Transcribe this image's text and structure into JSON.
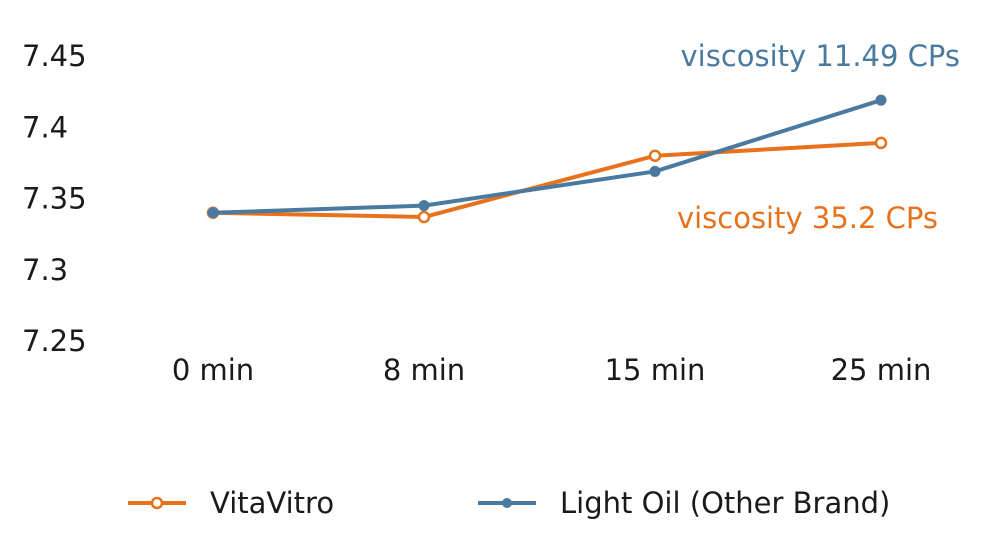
{
  "chart_data": {
    "type": "line",
    "title": "",
    "xlabel": "",
    "ylabel": "",
    "categories": [
      "0 min",
      "8 min",
      "15 min",
      "25 min"
    ],
    "ylim": [
      7.25,
      7.45
    ],
    "yticks": [
      "7.25",
      "7.3",
      "7.35",
      "7.4",
      "7.45"
    ],
    "grid": false,
    "legend_position": "bottom",
    "series": [
      {
        "name": "VitaVitro",
        "values": [
          7.34,
          7.337,
          7.38,
          7.389
        ],
        "color": "#e8721c",
        "marker": "open-circle",
        "annotation": "viscosity 35.2 CPs"
      },
      {
        "name": "Light Oil (Other Brand)",
        "values": [
          7.34,
          7.345,
          7.369,
          7.419
        ],
        "color": "#4a7aa0",
        "marker": "filled-circle",
        "annotation": "viscosity 11.49 CPs"
      }
    ]
  }
}
